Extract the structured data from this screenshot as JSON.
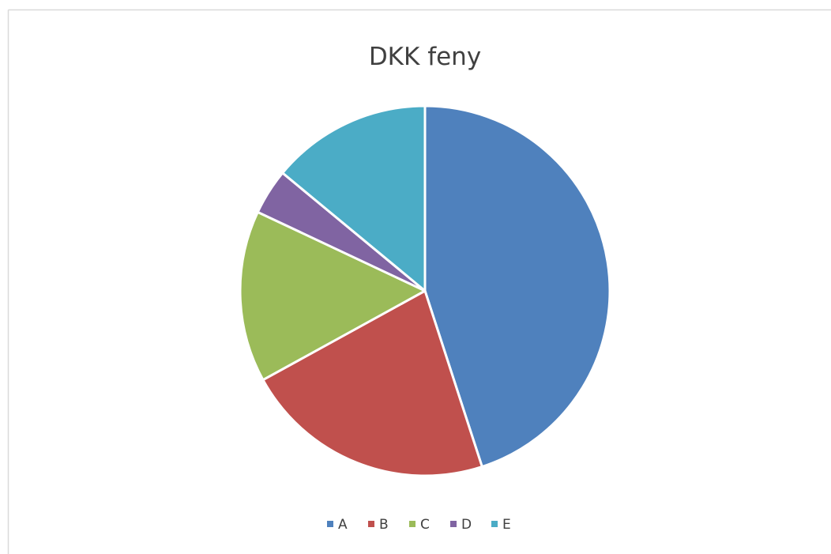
{
  "chart_data": {
    "type": "pie",
    "title": "DKK feny",
    "categories": [
      "A",
      "B",
      "C",
      "D",
      "E"
    ],
    "values": [
      45,
      22,
      15,
      4,
      14
    ],
    "colors": [
      "#4f81bd",
      "#c0504d",
      "#9bbb59",
      "#8064a2",
      "#4bacc6"
    ],
    "legend": "bottom"
  }
}
